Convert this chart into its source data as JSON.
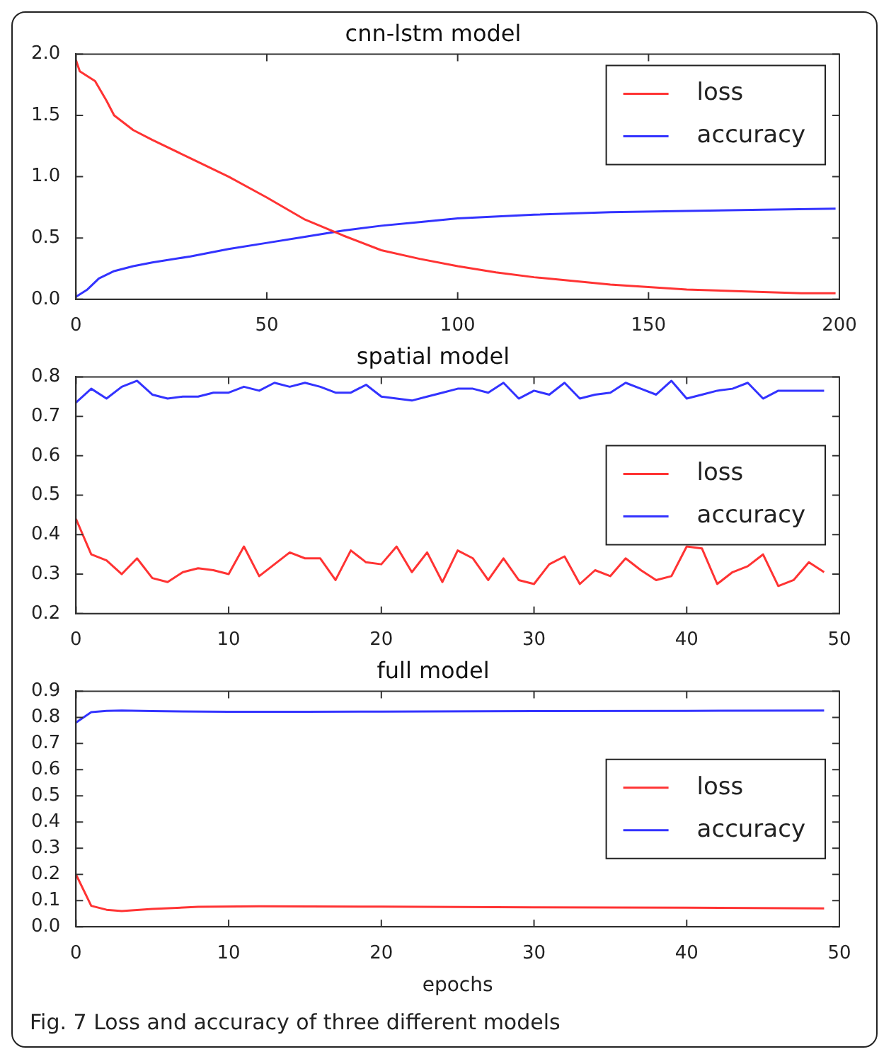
{
  "chart_data": [
    {
      "type": "line",
      "title": "cnn-lstm model",
      "xlim": [
        0,
        200
      ],
      "xticks": [
        0,
        50,
        100,
        150,
        200
      ],
      "ylim": [
        0,
        2
      ],
      "yticks": [
        {
          "value": 0,
          "label": "0.0"
        },
        {
          "value": 0.5,
          "label": "0.5"
        },
        {
          "value": 1,
          "label": "1.0"
        },
        {
          "value": 1.5,
          "label": "1.5"
        },
        {
          "value": 2,
          "label": "2.0"
        }
      ],
      "grid": false,
      "legend": "top right",
      "marker": "none",
      "line_style": "solid",
      "series": [
        {
          "name": "loss",
          "color": "#ff3333",
          "x": [
            0,
            1,
            5,
            8,
            10,
            15,
            20,
            30,
            40,
            50,
            60,
            70,
            80,
            90,
            100,
            110,
            120,
            130,
            140,
            150,
            160,
            170,
            180,
            190,
            199
          ],
          "values": [
            1.95,
            1.86,
            1.78,
            1.62,
            1.5,
            1.38,
            1.3,
            1.15,
            1.0,
            0.83,
            0.65,
            0.52,
            0.4,
            0.33,
            0.27,
            0.22,
            0.18,
            0.15,
            0.12,
            0.1,
            0.08,
            0.07,
            0.06,
            0.05,
            0.05
          ]
        },
        {
          "name": "accuracy",
          "color": "#3333ff",
          "x": [
            0,
            3,
            6,
            10,
            15,
            20,
            30,
            40,
            50,
            60,
            70,
            80,
            90,
            100,
            120,
            140,
            160,
            180,
            199
          ],
          "values": [
            0.02,
            0.08,
            0.17,
            0.23,
            0.27,
            0.3,
            0.35,
            0.41,
            0.46,
            0.51,
            0.56,
            0.6,
            0.63,
            0.66,
            0.69,
            0.71,
            0.72,
            0.73,
            0.74
          ]
        }
      ]
    },
    {
      "type": "line",
      "title": "spatial model",
      "xlim": [
        0,
        50
      ],
      "xticks": [
        0,
        10,
        20,
        30,
        40,
        50
      ],
      "ylim": [
        0.2,
        0.8
      ],
      "yticks": [
        0.2,
        0.3,
        0.4,
        0.5,
        0.6,
        0.7,
        0.8
      ],
      "grid": false,
      "legend": "right",
      "marker": "none",
      "line_style": "solid",
      "x": [
        0,
        1,
        2,
        3,
        4,
        5,
        6,
        7,
        8,
        9,
        10,
        11,
        12,
        13,
        14,
        15,
        16,
        17,
        18,
        19,
        20,
        21,
        22,
        23,
        24,
        25,
        26,
        27,
        28,
        29,
        30,
        31,
        32,
        33,
        34,
        35,
        36,
        37,
        38,
        39,
        40,
        41,
        42,
        43,
        44,
        45,
        46,
        47,
        48,
        49
      ],
      "series": [
        {
          "name": "loss",
          "color": "#ff3333",
          "values": [
            0.44,
            0.35,
            0.335,
            0.3,
            0.34,
            0.29,
            0.28,
            0.305,
            0.315,
            0.31,
            0.3,
            0.37,
            0.295,
            0.325,
            0.355,
            0.34,
            0.34,
            0.285,
            0.36,
            0.33,
            0.325,
            0.37,
            0.305,
            0.355,
            0.28,
            0.36,
            0.34,
            0.285,
            0.34,
            0.285,
            0.275,
            0.325,
            0.345,
            0.275,
            0.31,
            0.295,
            0.34,
            0.31,
            0.285,
            0.295,
            0.37,
            0.365,
            0.275,
            0.305,
            0.32,
            0.35,
            0.27,
            0.285,
            0.33,
            0.305
          ]
        },
        {
          "name": "accuracy",
          "color": "#3333ff",
          "values": [
            0.735,
            0.77,
            0.745,
            0.775,
            0.79,
            0.755,
            0.745,
            0.75,
            0.75,
            0.76,
            0.76,
            0.775,
            0.765,
            0.785,
            0.775,
            0.785,
            0.775,
            0.76,
            0.76,
            0.78,
            0.75,
            0.745,
            0.74,
            0.75,
            0.76,
            0.77,
            0.77,
            0.76,
            0.785,
            0.745,
            0.765,
            0.755,
            0.785,
            0.745,
            0.755,
            0.76,
            0.785,
            0.77,
            0.755,
            0.79,
            0.745,
            0.755,
            0.765,
            0.77,
            0.785,
            0.745,
            0.765,
            0.765,
            0.765,
            0.765
          ]
        }
      ]
    },
    {
      "type": "line",
      "title": "full model",
      "xlabel": "epochs",
      "xlim": [
        0,
        50
      ],
      "xticks": [
        0,
        10,
        20,
        30,
        40,
        50
      ],
      "ylim": [
        0,
        0.9
      ],
      "yticks": [
        {
          "value": 0,
          "label": "0.0"
        },
        0.1,
        0.2,
        0.3,
        0.4,
        0.5,
        0.6,
        0.7,
        0.8,
        0.9
      ],
      "grid": false,
      "legend": "right",
      "marker": "none",
      "line_style": "solid",
      "annotations": [
        "Fig. 7 Loss and accuracy of three different models"
      ],
      "series": [
        {
          "name": "loss",
          "color": "#ff3333",
          "x": [
            0,
            1,
            2,
            3,
            5,
            8,
            12,
            20,
            30,
            40,
            49
          ],
          "values": [
            0.2,
            0.08,
            0.065,
            0.06,
            0.068,
            0.076,
            0.078,
            0.077,
            0.074,
            0.073,
            0.07
          ]
        },
        {
          "name": "accuracy",
          "color": "#3333ff",
          "x": [
            0,
            1,
            2,
            3,
            5,
            10,
            15,
            20,
            30,
            40,
            49
          ],
          "values": [
            0.78,
            0.82,
            0.825,
            0.826,
            0.824,
            0.821,
            0.821,
            0.822,
            0.824,
            0.825,
            0.826
          ]
        }
      ]
    }
  ]
}
